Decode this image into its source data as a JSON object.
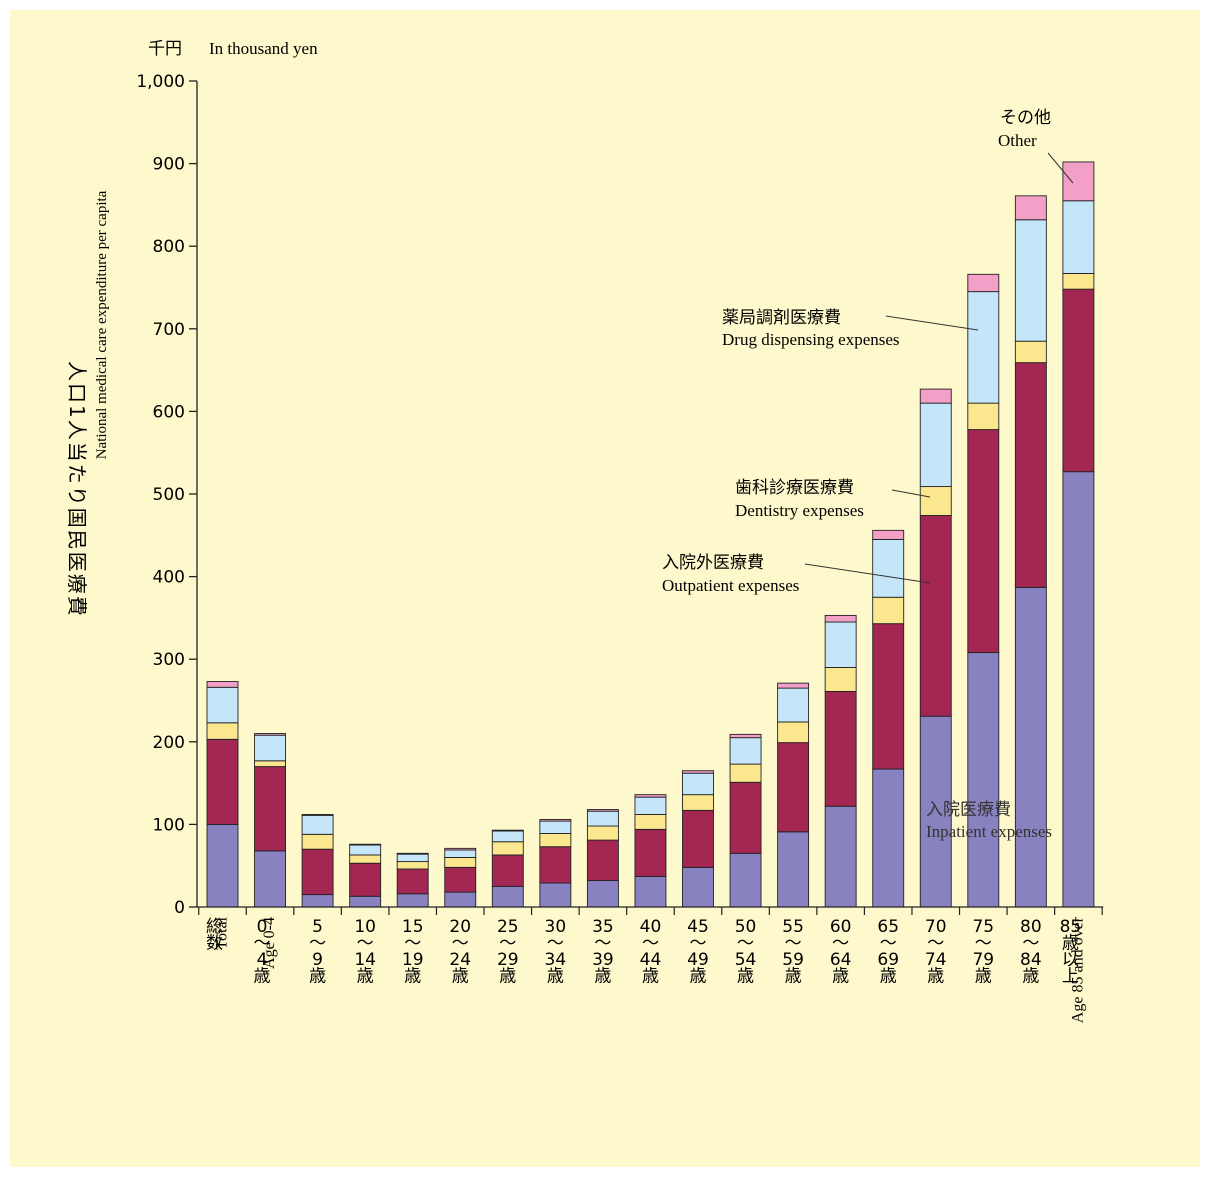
{
  "chart_data": {
    "type": "bar",
    "stacked": true,
    "unit": {
      "ja": "千円",
      "en": "In thousand yen"
    },
    "ylabel": {
      "ja": "人口1人当たり国民医療費",
      "en": "National medical care expenditure per capita"
    },
    "ylim": [
      0,
      1000
    ],
    "yticks": [
      0,
      100,
      200,
      300,
      400,
      500,
      600,
      700,
      800,
      900,
      1000
    ],
    "ytick_labels": [
      "0",
      "100",
      "200",
      "300",
      "400",
      "500",
      "600",
      "700",
      "800",
      "900",
      "1,000"
    ],
    "grid": false,
    "categories": [
      {
        "lines": [
          "総",
          "数"
        ],
        "en": "Total"
      },
      {
        "lines": [
          "0",
          "〜",
          "4",
          "歳"
        ],
        "en": "Age 0-4"
      },
      {
        "lines": [
          "5",
          "〜",
          "9",
          "歳"
        ],
        "en": ""
      },
      {
        "lines": [
          "10",
          "〜",
          "14",
          "歳"
        ],
        "en": ""
      },
      {
        "lines": [
          "15",
          "〜",
          "19",
          "歳"
        ],
        "en": ""
      },
      {
        "lines": [
          "20",
          "〜",
          "24",
          "歳"
        ],
        "en": ""
      },
      {
        "lines": [
          "25",
          "〜",
          "29",
          "歳"
        ],
        "en": ""
      },
      {
        "lines": [
          "30",
          "〜",
          "34",
          "歳"
        ],
        "en": ""
      },
      {
        "lines": [
          "35",
          "〜",
          "39",
          "歳"
        ],
        "en": ""
      },
      {
        "lines": [
          "40",
          "〜",
          "44",
          "歳"
        ],
        "en": ""
      },
      {
        "lines": [
          "45",
          "〜",
          "49",
          "歳"
        ],
        "en": ""
      },
      {
        "lines": [
          "50",
          "〜",
          "54",
          "歳"
        ],
        "en": ""
      },
      {
        "lines": [
          "55",
          "〜",
          "59",
          "歳"
        ],
        "en": ""
      },
      {
        "lines": [
          "60",
          "〜",
          "64",
          "歳"
        ],
        "en": ""
      },
      {
        "lines": [
          "65",
          "〜",
          "69",
          "歳"
        ],
        "en": ""
      },
      {
        "lines": [
          "70",
          "〜",
          "74",
          "歳"
        ],
        "en": ""
      },
      {
        "lines": [
          "75",
          "〜",
          "79",
          "歳"
        ],
        "en": ""
      },
      {
        "lines": [
          "80",
          "〜",
          "84",
          "歳"
        ],
        "en": ""
      },
      {
        "lines": [
          "85",
          "歳",
          "以",
          "上"
        ],
        "en": "Age 85 and over"
      }
    ],
    "series": [
      {
        "name": "入院医療費 Inpatient expenses",
        "ja": "入院医療費",
        "en": "Inpatient expenses",
        "color": "#8982c0",
        "values": [
          100,
          68,
          15,
          13,
          16,
          18,
          25,
          29,
          32,
          37,
          48,
          65,
          91,
          122,
          167,
          231,
          308,
          387,
          527
        ]
      },
      {
        "name": "入院外医療費 Outpatient expenses",
        "ja": "入院外医療費",
        "en": "Outpatient expenses",
        "color": "#a32653",
        "values": [
          103,
          102,
          55,
          40,
          30,
          30,
          38,
          44,
          49,
          57,
          69,
          86,
          108,
          139,
          176,
          243,
          270,
          272,
          221
        ]
      },
      {
        "name": "歯科診療医療費 Dentistry expenses",
        "ja": "歯科診療医療費",
        "en": "Dentistry expenses",
        "color": "#fbe88e",
        "values": [
          20,
          7,
          18,
          10,
          9,
          12,
          16,
          16,
          17,
          18,
          19,
          22,
          25,
          29,
          32,
          35,
          32,
          26,
          19
        ]
      },
      {
        "name": "薬局調剤医療費 Drug dispensing expenses",
        "ja": "薬局調剤医療費",
        "en": "Drug dispensing expenses",
        "color": "#c5e6f8",
        "values": [
          43,
          31,
          23,
          12,
          9,
          9,
          13,
          15,
          18,
          21,
          26,
          32,
          41,
          55,
          70,
          101,
          135,
          147,
          88
        ]
      },
      {
        "name": "その他 Other",
        "ja": "その他",
        "en": "Other",
        "color": "#f3a0c8",
        "values": [
          7,
          2,
          1,
          1,
          1,
          2,
          1,
          2,
          2,
          3,
          3,
          4,
          6,
          8,
          11,
          17,
          21,
          29,
          47
        ]
      }
    ]
  }
}
